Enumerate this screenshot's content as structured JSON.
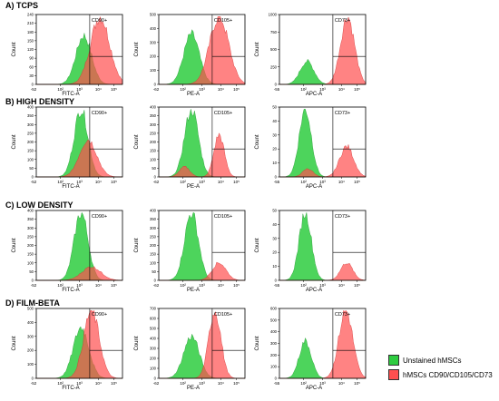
{
  "chart_data": {
    "type": "histogram-grid",
    "colors": {
      "unstained": "#2ecc40",
      "stained": "#ff4f4f"
    },
    "tick_labels": {
      "x_left": {
        "FITC-A": "-52",
        "PE-A": "-62",
        "APC-A": "-55"
      },
      "x_decades": [
        "10²",
        "10³",
        "10⁴",
        "10⁵"
      ]
    },
    "rows": [
      {
        "label": "A) TCPS",
        "panels": [
          {
            "marker": "CD90+",
            "xlabel": "FITC-A",
            "ylabel": "Count",
            "yticks": [
              "0",
              "30",
              "60",
              "90",
              "120",
              "150",
              "180",
              "210",
              "240"
            ],
            "ymax": 240,
            "unstained": {
              "center": 0.55,
              "width": 0.09,
              "peak": 0.72
            },
            "stained": {
              "center": 0.74,
              "width": 0.11,
              "peak": 1.0
            }
          },
          {
            "marker": "CD105+",
            "xlabel": "PE-A",
            "ylabel": "Count",
            "yticks": [
              "0",
              "100",
              "200",
              "300",
              "400",
              "500"
            ],
            "ymax": 500,
            "unstained": {
              "center": 0.38,
              "width": 0.09,
              "peak": 0.74
            },
            "stained": {
              "center": 0.7,
              "width": 0.11,
              "peak": 1.0
            }
          },
          {
            "marker": "CD73+",
            "xlabel": "APC-A",
            "ylabel": "Count",
            "yticks": [
              "0",
              "250",
              "500",
              "750",
              "1000"
            ],
            "ymax": 1000,
            "unstained": {
              "center": 0.32,
              "width": 0.08,
              "peak": 0.34
            },
            "stained": {
              "center": 0.79,
              "width": 0.08,
              "peak": 1.0
            }
          }
        ]
      },
      {
        "label": "B) HIGH DENSITY",
        "panels": [
          {
            "marker": "CD90+",
            "xlabel": "FITC-A",
            "ylabel": "Count",
            "yticks": [
              "0",
              "50",
              "100",
              "150",
              "200",
              "250",
              "300",
              "350",
              "400"
            ],
            "ymax": 400,
            "unstained": {
              "center": 0.52,
              "width": 0.08,
              "peak": 1.0
            },
            "stained": {
              "center": 0.6,
              "width": 0.1,
              "peak": 0.55
            }
          },
          {
            "marker": "CD105+",
            "xlabel": "PE-A",
            "ylabel": "Count",
            "yticks": [
              "0",
              "50",
              "100",
              "150",
              "200",
              "250",
              "300",
              "350",
              "400"
            ],
            "ymax": 400,
            "unstained": {
              "center": 0.38,
              "width": 0.08,
              "peak": 1.0
            },
            "stained": {
              "center": 0.7,
              "width": 0.06,
              "peak": 0.62,
              "second_center": 0.3,
              "second_peak": 0.15
            }
          },
          {
            "marker": "CD73+",
            "xlabel": "APC-A",
            "ylabel": "Count",
            "yticks": [
              "0",
              "10",
              "20",
              "30",
              "40",
              "50"
            ],
            "ymax": 50,
            "unstained": {
              "center": 0.3,
              "width": 0.07,
              "peak": 1.0
            },
            "stained": {
              "center": 0.78,
              "width": 0.08,
              "peak": 0.45,
              "second_center": 0.33,
              "second_peak": 0.12
            }
          }
        ]
      },
      {
        "label": "C) LOW DENSITY",
        "panels": [
          {
            "marker": "CD90+",
            "xlabel": "FITC-A",
            "ylabel": "Count",
            "yticks": [
              "0",
              "50",
              "100",
              "150",
              "200",
              "250",
              "300",
              "350",
              "400"
            ],
            "ymax": 400,
            "unstained": {
              "center": 0.52,
              "width": 0.08,
              "peak": 1.0
            },
            "stained": {
              "center": 0.64,
              "width": 0.11,
              "peak": 0.2
            }
          },
          {
            "marker": "CD105+",
            "xlabel": "PE-A",
            "ylabel": "Count",
            "yticks": [
              "0",
              "50",
              "100",
              "150",
              "200",
              "250",
              "300",
              "350",
              "400"
            ],
            "ymax": 400,
            "unstained": {
              "center": 0.38,
              "width": 0.08,
              "peak": 1.0
            },
            "stained": {
              "center": 0.7,
              "width": 0.08,
              "peak": 0.26
            }
          },
          {
            "marker": "CD73+",
            "xlabel": "APC-A",
            "ylabel": "Count",
            "yticks": [
              "0",
              "10",
              "20",
              "30",
              "40",
              "50"
            ],
            "ymax": 50,
            "unstained": {
              "center": 0.3,
              "width": 0.07,
              "peak": 1.0
            },
            "stained": {
              "center": 0.78,
              "width": 0.07,
              "peak": 0.26
            }
          }
        ]
      },
      {
        "label": "D) FILM-BETA",
        "panels": [
          {
            "marker": "CD90+",
            "xlabel": "FITC-A",
            "ylabel": "Count",
            "yticks": [
              "0",
              "100",
              "200",
              "300",
              "400",
              "500"
            ],
            "ymax": 500,
            "unstained": {
              "center": 0.52,
              "width": 0.09,
              "peak": 0.75
            },
            "stained": {
              "center": 0.64,
              "width": 0.09,
              "peak": 1.0
            }
          },
          {
            "marker": "CD105+",
            "xlabel": "PE-A",
            "ylabel": "Count",
            "yticks": [
              "0",
              "100",
              "200",
              "300",
              "400",
              "500",
              "600",
              "700"
            ],
            "ymax": 700,
            "unstained": {
              "center": 0.38,
              "width": 0.09,
              "peak": 0.62
            },
            "stained": {
              "center": 0.65,
              "width": 0.07,
              "peak": 1.0
            }
          },
          {
            "marker": "CD73+",
            "xlabel": "APC-A",
            "ylabel": "Count",
            "yticks": [
              "0",
              "100",
              "200",
              "300",
              "400",
              "500",
              "600"
            ],
            "ymax": 600,
            "unstained": {
              "center": 0.3,
              "width": 0.07,
              "peak": 0.55
            },
            "stained": {
              "center": 0.77,
              "width": 0.08,
              "peak": 1.0
            }
          }
        ]
      }
    ],
    "legend": [
      {
        "label": "Unstained hMSCs",
        "series": "unstained"
      },
      {
        "label": "hMSCs CD90/CD105/CD73",
        "series": "stained"
      }
    ]
  }
}
